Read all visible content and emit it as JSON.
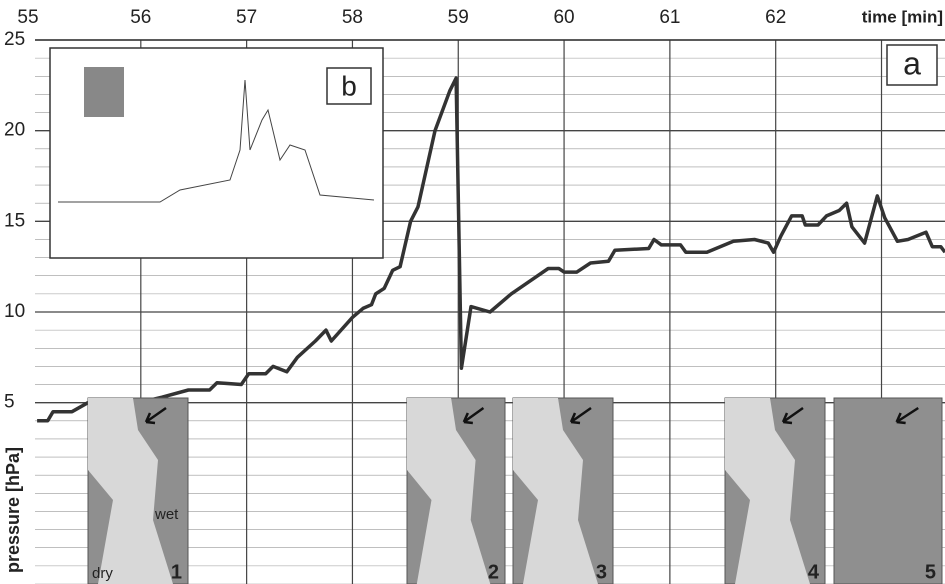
{
  "chart_data": {
    "type": "line",
    "x_label": "time [min]",
    "y_label": "pressure [hPa]",
    "panel_label": "a",
    "inset_label": "b",
    "photo_labels": [
      "1",
      "2",
      "3",
      "4",
      "5"
    ],
    "region_labels": [
      "wet",
      "dry"
    ],
    "xlim": [
      55,
      63.6
    ],
    "xticks": [
      55,
      56,
      57,
      58,
      59,
      60,
      61,
      62
    ],
    "ylim": [
      -5,
      25
    ],
    "yticks": [
      5,
      10,
      15,
      20,
      25
    ],
    "grid": true,
    "color": "#333333",
    "x": [
      55.02,
      55.12,
      55.17,
      55.35,
      55.5,
      55.8,
      56.05,
      56.2,
      56.45,
      56.65,
      56.72,
      56.95,
      57.02,
      57.18,
      57.25,
      57.38,
      57.48,
      57.65,
      57.75,
      57.8,
      58.0,
      58.1,
      58.18,
      58.22,
      58.3,
      58.38,
      58.45,
      58.55,
      58.62,
      58.78,
      58.92,
      58.98,
      59.03,
      59.12,
      59.3,
      59.5,
      59.7,
      59.85,
      59.95,
      60.0,
      60.12,
      60.25,
      60.42,
      60.48,
      60.8,
      60.85,
      60.92,
      61.1,
      61.15,
      61.35,
      61.6,
      61.8,
      61.93,
      61.98,
      62.05,
      62.15,
      62.25,
      62.28,
      62.4,
      62.48,
      62.6,
      62.67,
      62.72,
      62.84,
      62.96,
      63.03,
      63.15,
      63.25,
      63.42,
      63.48,
      63.56,
      63.6
    ],
    "values": [
      4.0,
      4.0,
      4.5,
      4.5,
      5.0,
      5.0,
      5.1,
      5.3,
      5.7,
      5.7,
      6.1,
      6.0,
      6.6,
      6.6,
      7.0,
      6.7,
      7.5,
      8.4,
      9.0,
      8.4,
      9.7,
      10.2,
      10.4,
      11.0,
      11.3,
      12.3,
      12.5,
      15.0,
      15.8,
      20.0,
      22.2,
      22.9,
      6.9,
      10.3,
      10.0,
      11.0,
      11.8,
      12.4,
      12.4,
      12.2,
      12.2,
      12.7,
      12.8,
      13.4,
      13.5,
      14.0,
      13.7,
      13.7,
      13.3,
      13.3,
      13.9,
      14.0,
      13.8,
      13.3,
      14.2,
      15.3,
      15.3,
      14.8,
      14.8,
      15.3,
      15.6,
      16.0,
      14.7,
      13.8,
      16.4,
      15.2,
      13.9,
      14.0,
      14.4,
      13.6,
      13.6,
      13.3
    ]
  }
}
